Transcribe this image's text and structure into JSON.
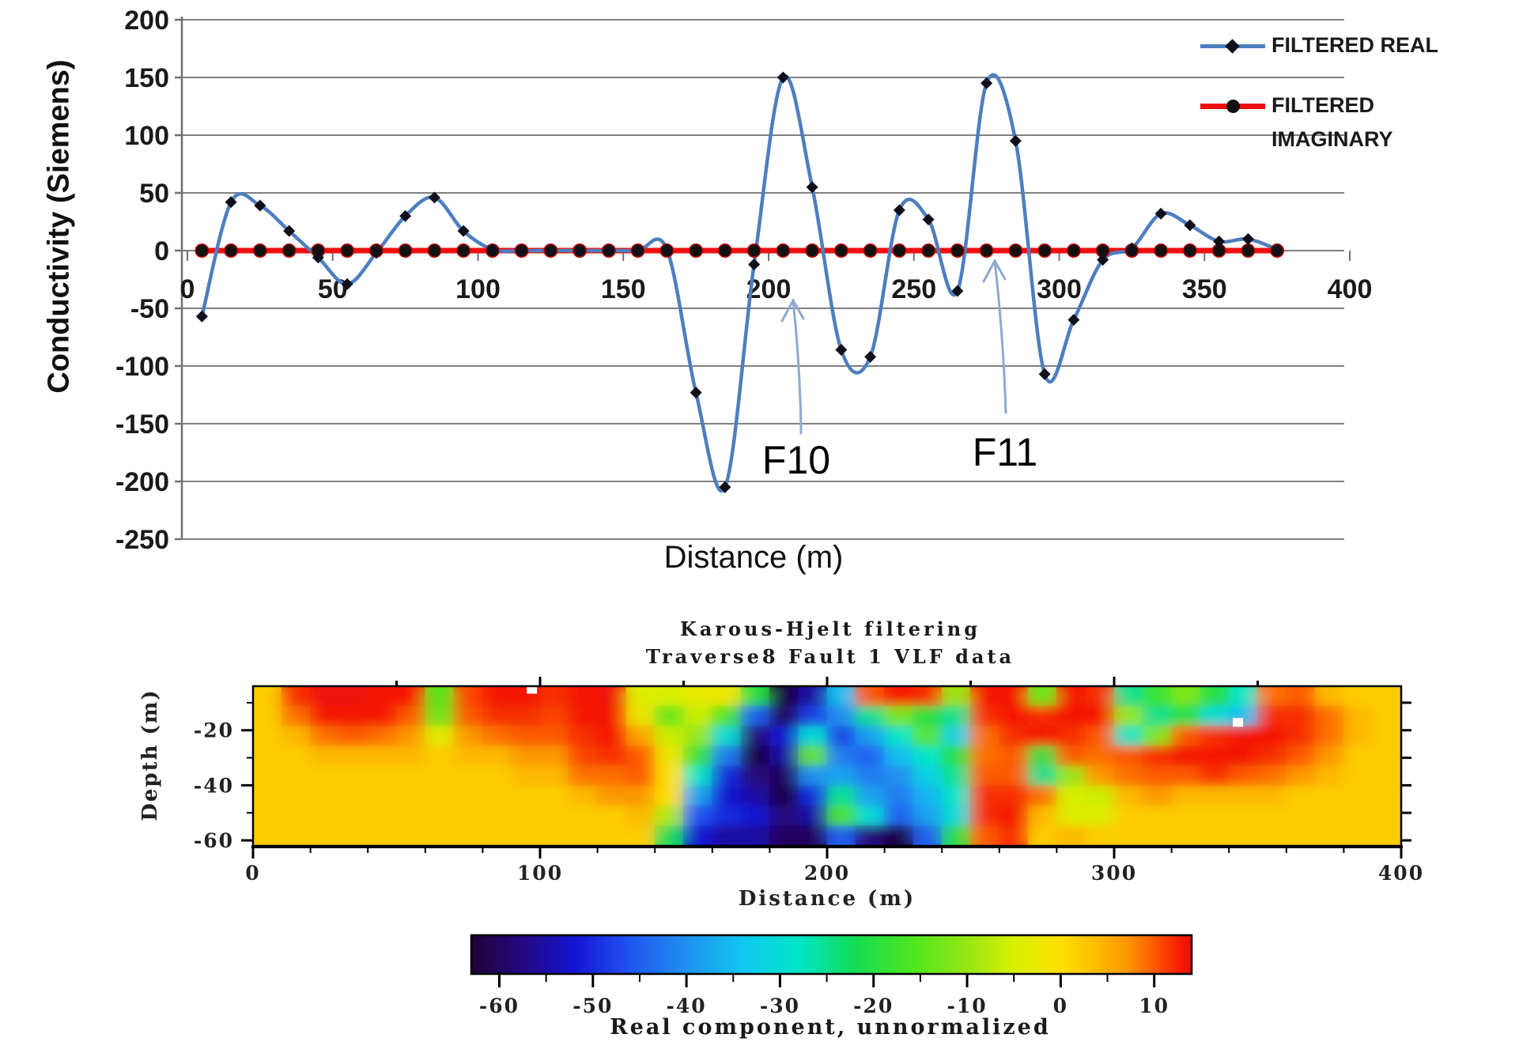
{
  "figure": {
    "background": "#ffffff"
  },
  "chart_data": [
    {
      "type": "line",
      "xlabel": "Distance (m)",
      "ylabel": "Conductivity (Siemens)",
      "xlim": [
        0,
        400
      ],
      "ylim": [
        -250,
        200
      ],
      "x_ticks": [
        0,
        50,
        100,
        150,
        200,
        250,
        300,
        350,
        400
      ],
      "y_ticks": [
        200,
        150,
        100,
        50,
        0,
        -50,
        -100,
        -150,
        -200,
        -250
      ],
      "grid": true,
      "grid_color": "#808080",
      "legend_position": "top-right",
      "series": [
        {
          "name": "FILTERED REAL",
          "color": "#4d7ebf",
          "marker": "diamond",
          "marker_color": "#10101c",
          "smooth": true,
          "x": [
            5,
            15,
            25,
            35,
            45,
            55,
            65,
            75,
            85,
            95,
            105,
            115,
            125,
            135,
            145,
            155,
            165,
            175,
            185,
            195,
            205,
            215,
            225,
            235,
            245,
            255,
            265,
            275,
            285,
            295,
            305,
            315,
            325,
            335,
            345,
            355,
            365,
            375
          ],
          "y": [
            -57,
            42,
            39,
            17,
            -6,
            -29,
            -2,
            30,
            46,
            17,
            1,
            0,
            0,
            0,
            0,
            0,
            1,
            -123,
            -205,
            -12,
            150,
            55,
            -86,
            -92,
            35,
            27,
            -35,
            145,
            95,
            -107,
            -60,
            -8,
            2,
            32,
            22,
            8,
            10,
            1
          ]
        },
        {
          "name": "FILTERED IMAGINARY",
          "name_lines": [
            "FILTERED",
            "IMAGINARY"
          ],
          "color": "#ee1111",
          "marker": "circle",
          "marker_color": "#111111",
          "x": [
            5,
            15,
            25,
            35,
            45,
            55,
            65,
            75,
            85,
            95,
            105,
            115,
            125,
            135,
            145,
            155,
            165,
            175,
            185,
            195,
            205,
            215,
            225,
            235,
            245,
            255,
            265,
            275,
            285,
            295,
            305,
            315,
            325,
            335,
            345,
            355,
            365,
            375
          ],
          "y_constant": 0
        }
      ],
      "annotations": [
        {
          "label": "F10",
          "x_m": 210
        },
        {
          "label": "F11",
          "x_m": 278
        }
      ],
      "arrow_color": "#8fa9cf"
    },
    {
      "type": "heatmap",
      "title_lines": [
        "Karous-Hjelt filtering",
        "Traverse8 Fault 1 VLF data"
      ],
      "xlabel": "Distance (m)",
      "ylabel": "Depth (m)",
      "x_range": [
        0,
        400
      ],
      "depth_range": [
        -4,
        -62
      ],
      "x_ticks": [
        0,
        100,
        200,
        300,
        400
      ],
      "x_minor_step": 20,
      "depth_ticks": [
        -20,
        -40,
        -60
      ],
      "depth_minor_ticks": [
        -10,
        -30,
        -50
      ],
      "col_x_start": 5,
      "col_x_step": 10,
      "row_depths": [
        -7,
        -14,
        -22,
        -29,
        -36,
        -44,
        -51,
        -58
      ],
      "values": [
        [
          2,
          12,
          14,
          14,
          13,
          13,
          -16,
          11,
          13,
          13,
          12,
          13,
          14,
          -4,
          -5,
          -3,
          -2,
          -20,
          -62,
          -55,
          -35,
          10,
          13,
          12,
          -10,
          13,
          13,
          -14,
          13,
          12,
          -25,
          -18,
          -12,
          -20,
          -28,
          9,
          10,
          4,
          2,
          2
        ],
        [
          2,
          9,
          13,
          13,
          13,
          10,
          -14,
          10,
          12,
          12,
          11,
          13,
          13,
          -2,
          -14,
          -6,
          -16,
          -45,
          -60,
          -48,
          -40,
          -25,
          -12,
          -20,
          -25,
          12,
          13,
          12,
          13,
          13,
          -10,
          -25,
          -20,
          -30,
          -35,
          12,
          12,
          9,
          4,
          2
        ],
        [
          2,
          4,
          9,
          10,
          9,
          7,
          -4,
          7,
          9,
          10,
          10,
          12,
          13,
          6,
          -6,
          -10,
          -30,
          -58,
          -52,
          -30,
          -48,
          -38,
          -28,
          -15,
          -32,
          9,
          12,
          13,
          12,
          10,
          -28,
          -12,
          10,
          12,
          13,
          13,
          12,
          9,
          4,
          2
        ],
        [
          2,
          2,
          4,
          4,
          4,
          4,
          2,
          4,
          4,
          7,
          7,
          11,
          12,
          10,
          -2,
          -18,
          -42,
          -62,
          -55,
          -14,
          -42,
          -45,
          -35,
          -28,
          -20,
          9,
          10,
          -20,
          10,
          9,
          10,
          12,
          13,
          13,
          13,
          12,
          10,
          7,
          2,
          2
        ],
        [
          2,
          2,
          2,
          2,
          2,
          2,
          2,
          2,
          2,
          4,
          4,
          9,
          9,
          10,
          0,
          -28,
          -50,
          -58,
          -60,
          -40,
          -38,
          -42,
          -40,
          -32,
          -25,
          10,
          10,
          -25,
          -10,
          7,
          9,
          10,
          10,
          12,
          10,
          9,
          7,
          4,
          2,
          2
        ],
        [
          2,
          2,
          2,
          2,
          2,
          2,
          2,
          2,
          2,
          2,
          2,
          4,
          7,
          7,
          0,
          -38,
          -52,
          -55,
          -62,
          -50,
          -25,
          -38,
          -42,
          -36,
          -28,
          12,
          12,
          9,
          -5,
          -6,
          4,
          7,
          4,
          4,
          4,
          4,
          2,
          2,
          2,
          2
        ],
        [
          2,
          2,
          2,
          2,
          2,
          2,
          2,
          2,
          2,
          2,
          2,
          2,
          2,
          4,
          -8,
          -46,
          -50,
          -52,
          -58,
          -55,
          -16,
          -30,
          -45,
          -38,
          -30,
          12,
          13,
          4,
          -4,
          -4,
          2,
          2,
          2,
          2,
          2,
          2,
          2,
          2,
          2,
          2
        ],
        [
          2,
          2,
          2,
          2,
          2,
          2,
          2,
          2,
          2,
          2,
          2,
          2,
          2,
          2,
          -22,
          -52,
          -55,
          -55,
          -60,
          -60,
          -45,
          -58,
          -62,
          -45,
          -20,
          10,
          12,
          2,
          4,
          2,
          2,
          2,
          2,
          2,
          2,
          2,
          2,
          2,
          2,
          2
        ]
      ],
      "white_specks": [
        {
          "x_m": 97,
          "depth": -5
        },
        {
          "x_m": 343,
          "depth": -17
        }
      ],
      "colormap_stops": [
        [
          -63,
          "#1c0435"
        ],
        [
          -58,
          "#25077a"
        ],
        [
          -52,
          "#1414d2"
        ],
        [
          -46,
          "#2055f0"
        ],
        [
          -40,
          "#2090f0"
        ],
        [
          -34,
          "#10c8f0"
        ],
        [
          -28,
          "#00e6c8"
        ],
        [
          -22,
          "#14dc55"
        ],
        [
          -16,
          "#4ce61e"
        ],
        [
          -10,
          "#96e614"
        ],
        [
          -5,
          "#d8f000"
        ],
        [
          0,
          "#fde000"
        ],
        [
          3,
          "#fdc400"
        ],
        [
          7,
          "#fc9800"
        ],
        [
          10,
          "#fc5a00"
        ],
        [
          13,
          "#f51800"
        ],
        [
          15,
          "#e81010"
        ]
      ],
      "colorbar": {
        "label": "Real component, unnormalized",
        "range": [
          -63,
          14
        ],
        "ticks": [
          -60,
          -50,
          -40,
          -30,
          -20,
          -10,
          0,
          10
        ],
        "minor_ticks": [
          -55,
          -45,
          -35,
          -25,
          -15,
          -5,
          5
        ]
      }
    }
  ]
}
